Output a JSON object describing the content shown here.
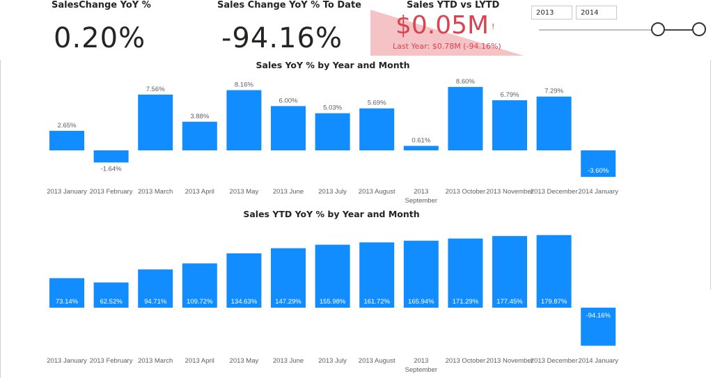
{
  "kpis": [
    {
      "title": "SalesChange YoY %",
      "value": "0.20%"
    },
    {
      "title": "Sales Change YoY % To Date",
      "value": "-94.16%"
    }
  ],
  "gauge": {
    "title": "Sales YTD vs LYTD",
    "value": "$0.05M",
    "indicator": "!",
    "subtitle": "Last Year: $0.78M (-94.16%)",
    "colors": {
      "value": "#d64550",
      "band": "#f5c2c6"
    }
  },
  "slicer": {
    "start": "2013",
    "end": "2014"
  },
  "colors": {
    "bar": "#118dff",
    "text": "#605e5c"
  },
  "chart_data": [
    {
      "type": "bar",
      "title": "Sales YoY % by Year and Month",
      "categories": [
        "2013 January",
        "2013 February",
        "2013 March",
        "2013 April",
        "2013 May",
        "2013 June",
        "2013 July",
        "2013 August",
        "2013 September",
        "2013 October",
        "2013 November",
        "2013 December",
        "2014 January"
      ],
      "values": [
        2.65,
        -1.64,
        7.56,
        3.88,
        8.16,
        6.0,
        5.03,
        5.69,
        0.61,
        8.6,
        6.79,
        7.29,
        -3.6
      ],
      "labels": [
        "2.65%",
        "-1.64%",
        "7.56%",
        "3.88%",
        "8.16%",
        "6.00%",
        "5.03%",
        "5.69%",
        "0.61%",
        "8.60%",
        "6.79%",
        "7.29%",
        "-3.60%"
      ],
      "ylim": [
        -3.6,
        8.6
      ],
      "label_position": "outside"
    },
    {
      "type": "bar",
      "title": "Sales YTD YoY % by Year and Month",
      "categories": [
        "2013 January",
        "2013 February",
        "2013 March",
        "2013 April",
        "2013 May",
        "2013 June",
        "2013 July",
        "2013 August",
        "2013 September",
        "2013 October",
        "2013 November",
        "2013 December",
        "2014 January"
      ],
      "values": [
        73.14,
        62.52,
        94.71,
        109.72,
        134.63,
        147.29,
        155.98,
        161.72,
        165.94,
        171.29,
        177.45,
        179.87,
        -94.16
      ],
      "labels": [
        "73.14%",
        "62.52%",
        "94.71%",
        "109.72%",
        "134.63%",
        "147.29%",
        "155.98%",
        "161.72%",
        "165.94%",
        "171.29%",
        "177.45%",
        "179.87%",
        "-94.16%"
      ],
      "ylim": [
        -94.16,
        179.87
      ],
      "label_position": "inside"
    }
  ]
}
